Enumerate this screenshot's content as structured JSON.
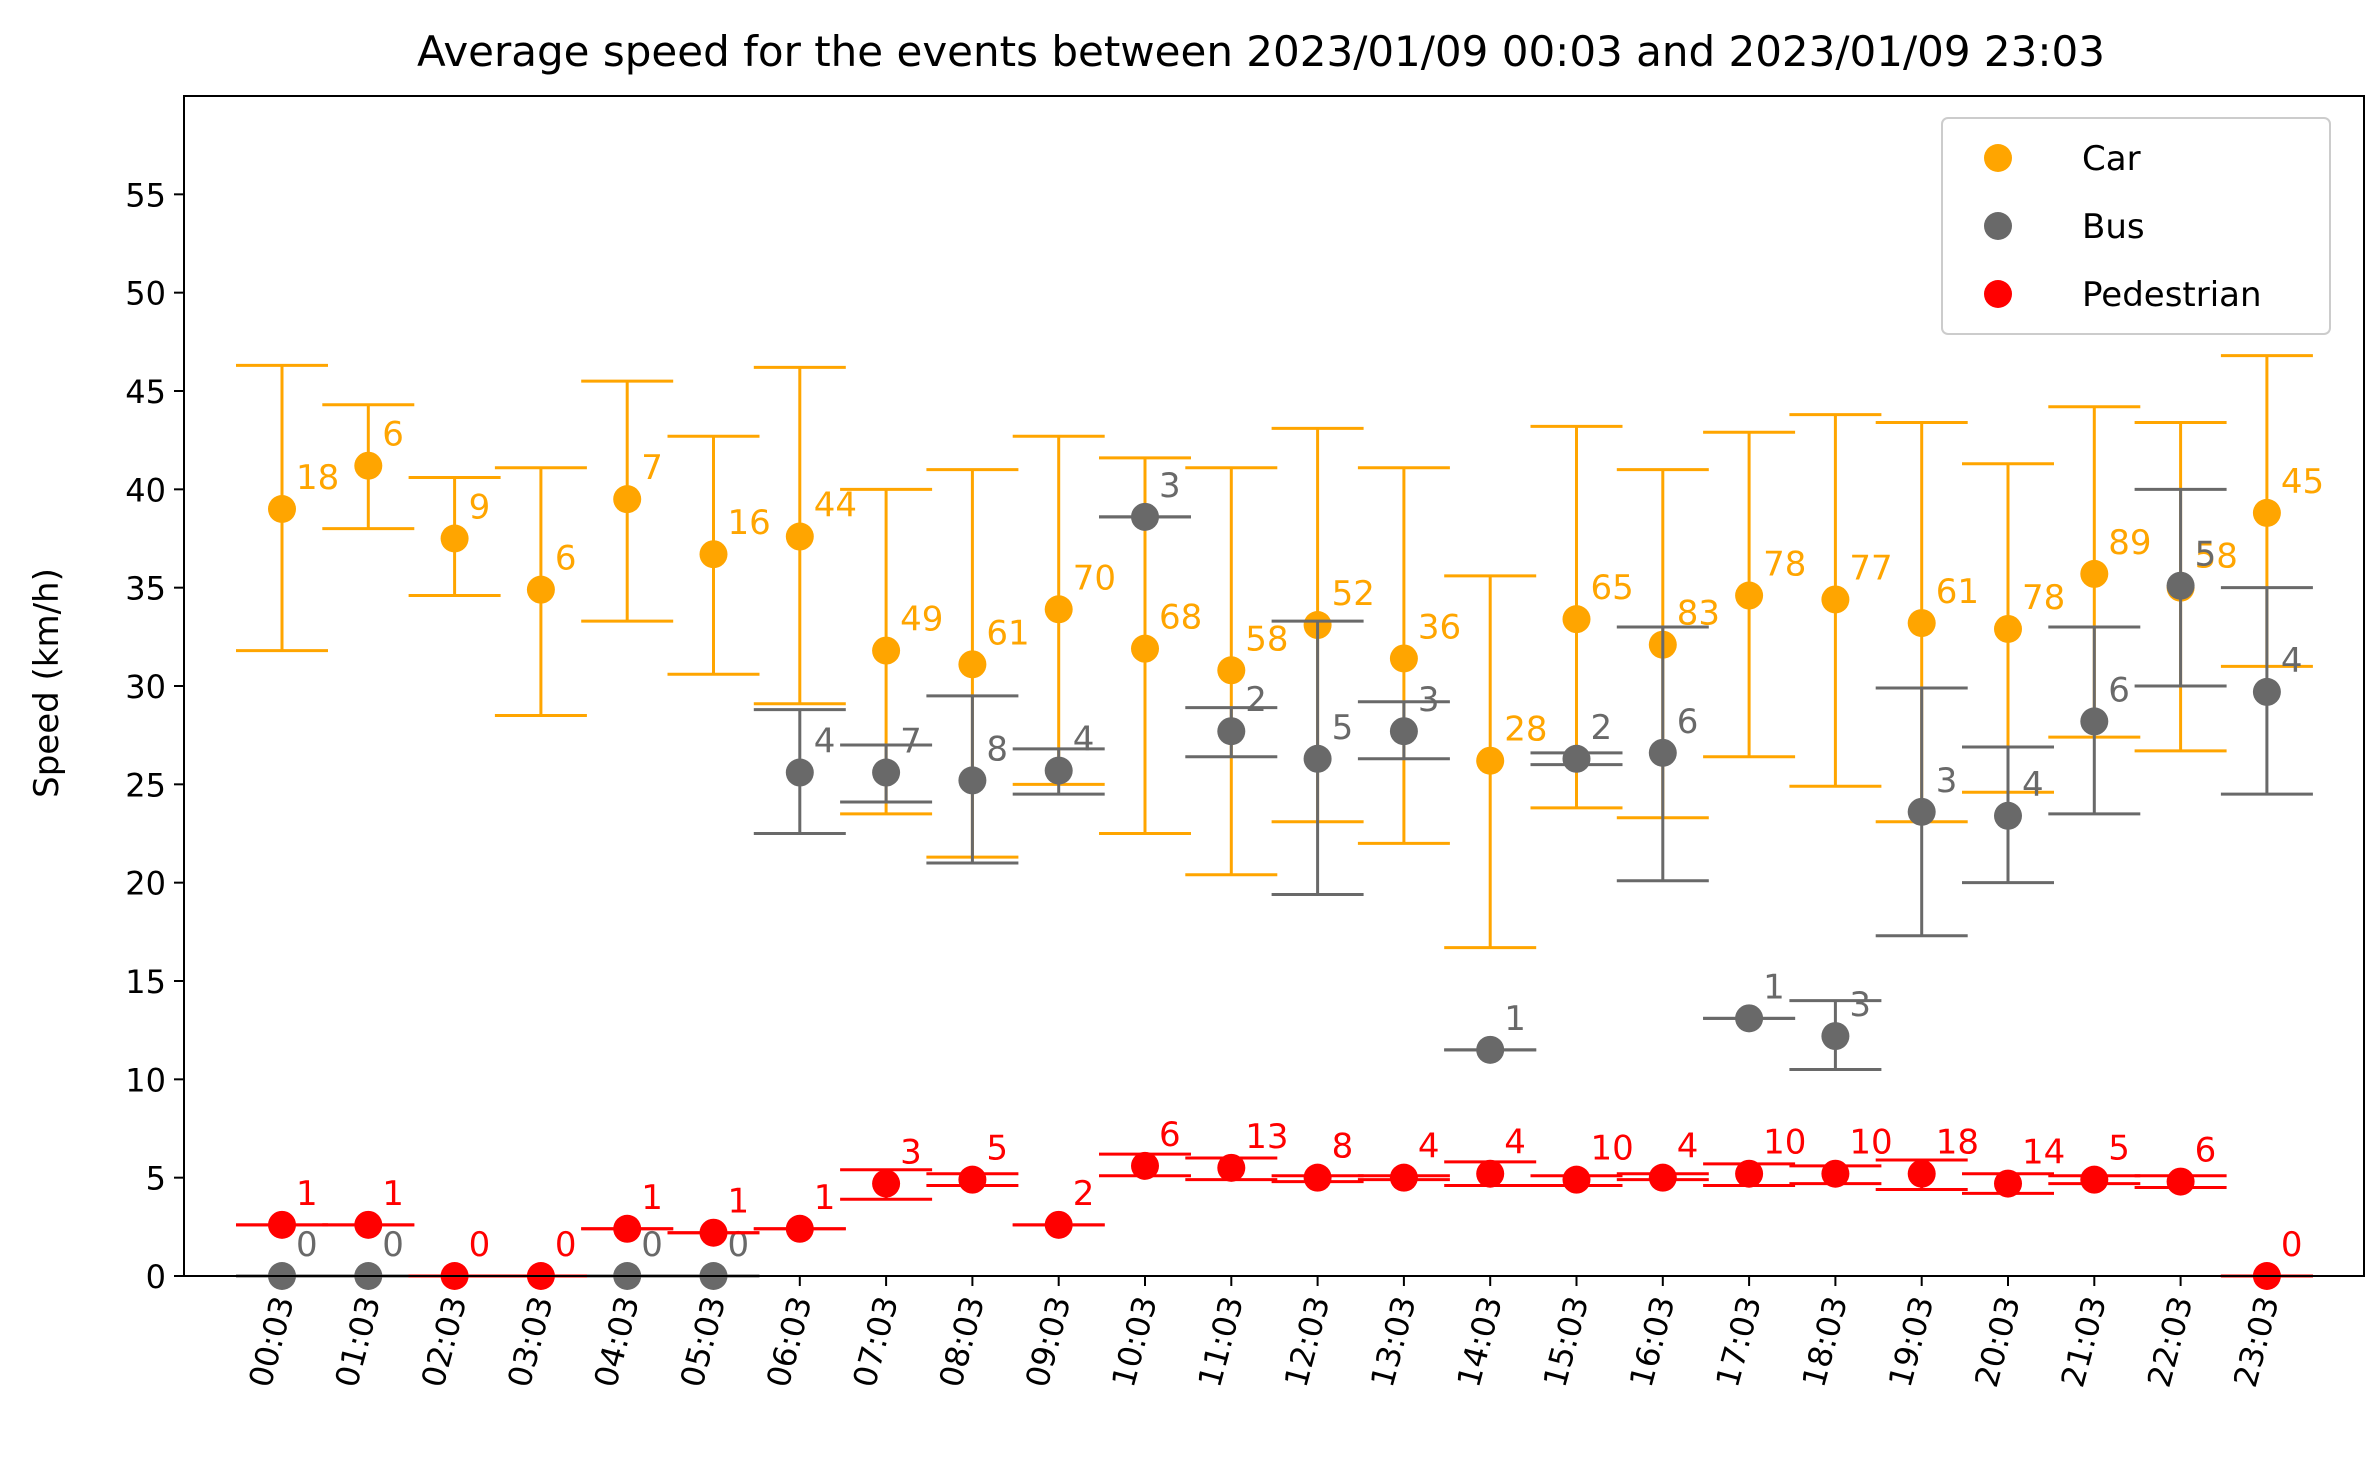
{
  "chart_data": {
    "type": "scatter",
    "title": "Average speed for the events between 2023/01/09 00:03 and 2023/01/09 23:03",
    "xlabel": "",
    "ylabel": "Speed (km/h)",
    "ylim": [
      0,
      60
    ],
    "yticks": [
      0,
      5,
      10,
      15,
      20,
      25,
      30,
      35,
      40,
      45,
      50,
      55
    ],
    "grid": false,
    "legend_position": "top-right",
    "categories": [
      "00:03",
      "01:03",
      "02:03",
      "03:03",
      "04:03",
      "05:03",
      "06:03",
      "07:03",
      "08:03",
      "09:03",
      "10:03",
      "11:03",
      "12:03",
      "13:03",
      "14:03",
      "15:03",
      "16:03",
      "17:03",
      "18:03",
      "19:03",
      "20:03",
      "21:03",
      "22:03",
      "23:03"
    ],
    "series": [
      {
        "name": "Car",
        "color": "#ffa500",
        "points": [
          {
            "x": 0,
            "y": 39.0,
            "low": 31.8,
            "high": 46.3,
            "count": "18"
          },
          {
            "x": 1,
            "y": 41.2,
            "low": 38.0,
            "high": 44.3,
            "count": "6"
          },
          {
            "x": 2,
            "y": 37.5,
            "low": 34.6,
            "high": 40.6,
            "count": "9"
          },
          {
            "x": 3,
            "y": 34.9,
            "low": 28.5,
            "high": 41.1,
            "count": "6"
          },
          {
            "x": 4,
            "y": 39.5,
            "low": 33.3,
            "high": 45.5,
            "count": "7"
          },
          {
            "x": 5,
            "y": 36.7,
            "low": 30.6,
            "high": 42.7,
            "count": "16"
          },
          {
            "x": 6,
            "y": 37.6,
            "low": 29.1,
            "high": 46.2,
            "count": "44"
          },
          {
            "x": 7,
            "y": 31.8,
            "low": 23.5,
            "high": 40.0,
            "count": "49"
          },
          {
            "x": 8,
            "y": 31.1,
            "low": 21.3,
            "high": 41.0,
            "count": "61"
          },
          {
            "x": 9,
            "y": 33.9,
            "low": 25.0,
            "high": 42.7,
            "count": "70"
          },
          {
            "x": 10,
            "y": 31.9,
            "low": 22.5,
            "high": 41.6,
            "count": "68"
          },
          {
            "x": 11,
            "y": 30.8,
            "low": 20.4,
            "high": 41.1,
            "count": "58"
          },
          {
            "x": 12,
            "y": 33.1,
            "low": 23.1,
            "high": 43.1,
            "count": "52"
          },
          {
            "x": 13,
            "y": 31.4,
            "low": 22.0,
            "high": 41.1,
            "count": "36"
          },
          {
            "x": 14,
            "y": 26.2,
            "low": 16.7,
            "high": 35.6,
            "count": "28"
          },
          {
            "x": 15,
            "y": 33.4,
            "low": 23.8,
            "high": 43.2,
            "count": "65"
          },
          {
            "x": 16,
            "y": 32.1,
            "low": 23.3,
            "high": 41.0,
            "count": "83"
          },
          {
            "x": 17,
            "y": 34.6,
            "low": 26.4,
            "high": 42.9,
            "count": "78"
          },
          {
            "x": 18,
            "y": 34.4,
            "low": 24.9,
            "high": 43.8,
            "count": "77"
          },
          {
            "x": 19,
            "y": 33.2,
            "low": 23.1,
            "high": 43.4,
            "count": "61"
          },
          {
            "x": 20,
            "y": 32.9,
            "low": 24.6,
            "high": 41.3,
            "count": "78"
          },
          {
            "x": 21,
            "y": 35.7,
            "low": 27.4,
            "high": 44.2,
            "count": "89"
          },
          {
            "x": 22,
            "y": 35.0,
            "low": 26.7,
            "high": 43.4,
            "count": "58"
          },
          {
            "x": 23,
            "y": 38.8,
            "low": 31.0,
            "high": 46.8,
            "count": "45"
          }
        ]
      },
      {
        "name": "Bus",
        "color": "#696969",
        "points": [
          {
            "x": 0,
            "y": 0,
            "low": 0,
            "high": 0,
            "count": "0"
          },
          {
            "x": 1,
            "y": 0,
            "low": 0,
            "high": 0,
            "count": "0"
          },
          {
            "x": 4,
            "y": 0,
            "low": 0,
            "high": 0,
            "count": "0"
          },
          {
            "x": 5,
            "y": 0,
            "low": 0,
            "high": 0,
            "count": "0"
          },
          {
            "x": 6,
            "y": 25.6,
            "low": 22.5,
            "high": 28.8,
            "count": "4"
          },
          {
            "x": 7,
            "y": 25.6,
            "low": 24.1,
            "high": 27.0,
            "count": "7"
          },
          {
            "x": 8,
            "y": 25.2,
            "low": 21.0,
            "high": 29.5,
            "count": "8"
          },
          {
            "x": 9,
            "y": 25.7,
            "low": 24.5,
            "high": 26.8,
            "count": "4"
          },
          {
            "x": 10,
            "y": 38.6,
            "low": 38.6,
            "high": 38.6,
            "count": "3"
          },
          {
            "x": 11,
            "y": 27.7,
            "low": 26.4,
            "high": 28.9,
            "count": "2"
          },
          {
            "x": 12,
            "y": 26.3,
            "low": 19.4,
            "high": 33.3,
            "count": "5"
          },
          {
            "x": 13,
            "y": 27.7,
            "low": 26.3,
            "high": 29.2,
            "count": "3"
          },
          {
            "x": 14,
            "y": 11.5,
            "low": 11.5,
            "high": 11.5,
            "count": "1"
          },
          {
            "x": 15,
            "y": 26.3,
            "low": 26.0,
            "high": 26.6,
            "count": "2"
          },
          {
            "x": 16,
            "y": 26.6,
            "low": 20.1,
            "high": 33.0,
            "count": "6"
          },
          {
            "x": 17,
            "y": 13.1,
            "low": 13.1,
            "high": 13.1,
            "count": "1"
          },
          {
            "x": 18,
            "y": 12.2,
            "low": 10.5,
            "high": 14.0,
            "count": "3"
          },
          {
            "x": 19,
            "y": 23.6,
            "low": 17.3,
            "high": 29.9,
            "count": "3"
          },
          {
            "x": 20,
            "y": 23.4,
            "low": 20.0,
            "high": 26.9,
            "count": "4"
          },
          {
            "x": 21,
            "y": 28.2,
            "low": 23.5,
            "high": 33.0,
            "count": "6"
          },
          {
            "x": 22,
            "y": 35.1,
            "low": 30.0,
            "high": 40.0,
            "count": "5"
          },
          {
            "x": 23,
            "y": 29.7,
            "low": 24.5,
            "high": 35.0,
            "count": "4"
          }
        ]
      },
      {
        "name": "Pedestrian",
        "color": "#ff0000",
        "points": [
          {
            "x": 0,
            "y": 2.6,
            "low": 2.6,
            "high": 2.6,
            "count": "1"
          },
          {
            "x": 1,
            "y": 2.6,
            "low": 2.6,
            "high": 2.6,
            "count": "1"
          },
          {
            "x": 2,
            "y": 0,
            "low": 0,
            "high": 0,
            "count": "0"
          },
          {
            "x": 3,
            "y": 0,
            "low": 0,
            "high": 0,
            "count": "0"
          },
          {
            "x": 4,
            "y": 2.4,
            "low": 2.4,
            "high": 2.4,
            "count": "1"
          },
          {
            "x": 5,
            "y": 2.2,
            "low": 2.2,
            "high": 2.2,
            "count": "1"
          },
          {
            "x": 6,
            "y": 2.4,
            "low": 2.4,
            "high": 2.4,
            "count": "1"
          },
          {
            "x": 7,
            "y": 4.7,
            "low": 3.9,
            "high": 5.4,
            "count": "3"
          },
          {
            "x": 8,
            "y": 4.9,
            "low": 4.6,
            "high": 5.2,
            "count": "5"
          },
          {
            "x": 9,
            "y": 2.6,
            "low": 2.6,
            "high": 2.6,
            "count": "2"
          },
          {
            "x": 10,
            "y": 5.6,
            "low": 5.1,
            "high": 6.2,
            "count": "6"
          },
          {
            "x": 11,
            "y": 5.5,
            "low": 4.9,
            "high": 6.0,
            "count": "13"
          },
          {
            "x": 12,
            "y": 5.0,
            "low": 4.8,
            "high": 5.1,
            "count": "8"
          },
          {
            "x": 13,
            "y": 5.0,
            "low": 4.9,
            "high": 5.1,
            "count": "4"
          },
          {
            "x": 14,
            "y": 5.2,
            "low": 4.6,
            "high": 5.8,
            "count": "4"
          },
          {
            "x": 15,
            "y": 4.9,
            "low": 4.6,
            "high": 5.1,
            "count": "10"
          },
          {
            "x": 16,
            "y": 5.0,
            "low": 4.9,
            "high": 5.2,
            "count": "4"
          },
          {
            "x": 17,
            "y": 5.2,
            "low": 4.6,
            "high": 5.7,
            "count": "10"
          },
          {
            "x": 18,
            "y": 5.2,
            "low": 4.7,
            "high": 5.6,
            "count": "10"
          },
          {
            "x": 19,
            "y": 5.2,
            "low": 4.4,
            "high": 5.9,
            "count": "18"
          },
          {
            "x": 20,
            "y": 4.7,
            "low": 4.2,
            "high": 5.2,
            "count": "14"
          },
          {
            "x": 21,
            "y": 4.9,
            "low": 4.7,
            "high": 5.1,
            "count": "5"
          },
          {
            "x": 22,
            "y": 4.8,
            "low": 4.5,
            "high": 5.1,
            "count": "6"
          },
          {
            "x": 23,
            "y": 0,
            "low": 0,
            "high": 0,
            "count": "0"
          }
        ]
      }
    ]
  }
}
